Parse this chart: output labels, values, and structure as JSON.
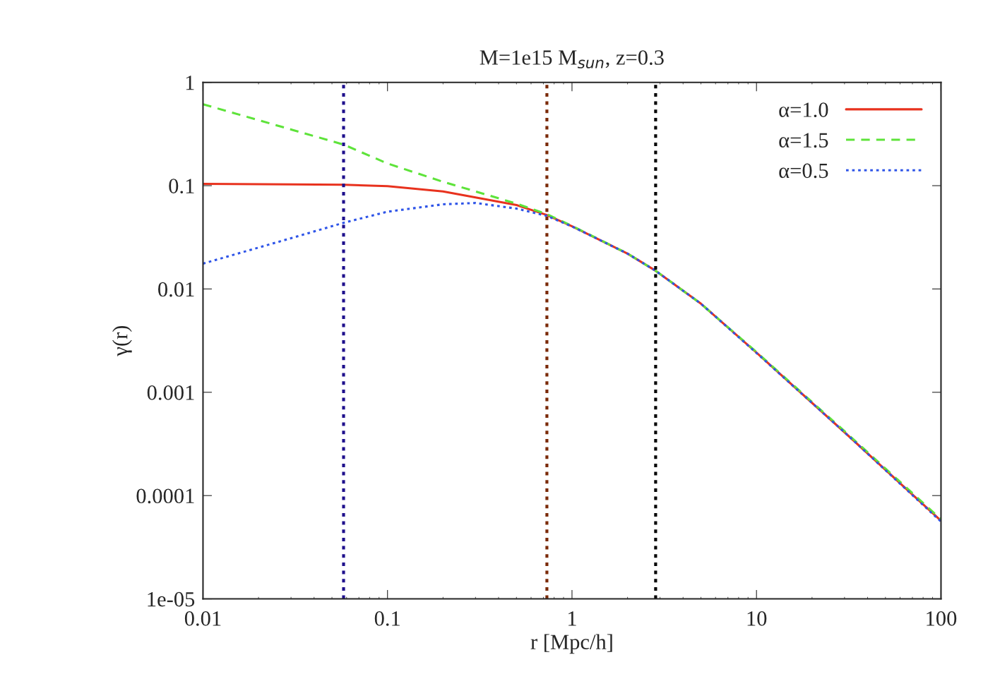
{
  "chart_data": {
    "type": "line",
    "title": "M=1e15 M$_{sun}$, z=0.3",
    "xlabel": "r [Mpc/h]",
    "ylabel": "γ(r)",
    "log": "xy",
    "xlim": [
      0.01,
      100
    ],
    "ylim": [
      1e-05,
      1
    ],
    "xticks": [
      0.01,
      0.1,
      1,
      10,
      100
    ],
    "yticks": [
      {
        "value": 1e-05,
        "label": "1e-05"
      },
      0.0001,
      0.001,
      0.01,
      0.1,
      1
    ],
    "x": [
      0.01,
      0.03,
      0.0578,
      0.1,
      0.2,
      0.3,
      0.5,
      0.73,
      1,
      2,
      2.84,
      5,
      10,
      30,
      100
    ],
    "series": [
      {
        "name": "α=1.0",
        "color": "#e8321e",
        "line_style": "solid",
        "values": [
          0.104,
          0.103,
          0.102,
          0.099,
          0.088,
          0.077,
          0.065,
          0.052,
          0.0405,
          0.022,
          0.015,
          0.0072,
          0.00242,
          0.00041,
          5.7e-05
        ]
      },
      {
        "name": "α=1.5",
        "color": "#5ee33a",
        "line_style": "dashed",
        "values": [
          0.614,
          0.35,
          0.25,
          0.164,
          0.109,
          0.088,
          0.067,
          0.053,
          0.0408,
          0.022,
          0.015,
          0.0072,
          0.00245,
          0.00042,
          5.9e-05
        ]
      },
      {
        "name": "α=0.5",
        "color": "#2f55e8",
        "line_style": "dotted",
        "values": [
          0.0176,
          0.031,
          0.0437,
          0.056,
          0.066,
          0.068,
          0.06,
          0.051,
          0.0403,
          0.022,
          0.015,
          0.0072,
          0.0024,
          0.00041,
          5.6e-05
        ]
      }
    ],
    "ref_lines": [
      {
        "axis": "x",
        "value": 0.0578,
        "color": "#1e0f8c",
        "line_style": "dotted"
      },
      {
        "axis": "x",
        "value": 0.731,
        "color": "#7a2a08",
        "line_style": "dotted"
      },
      {
        "axis": "x",
        "value": 2.84,
        "color": "#000000",
        "line_style": "dotted"
      }
    ],
    "legend": "top right",
    "grid": false
  }
}
